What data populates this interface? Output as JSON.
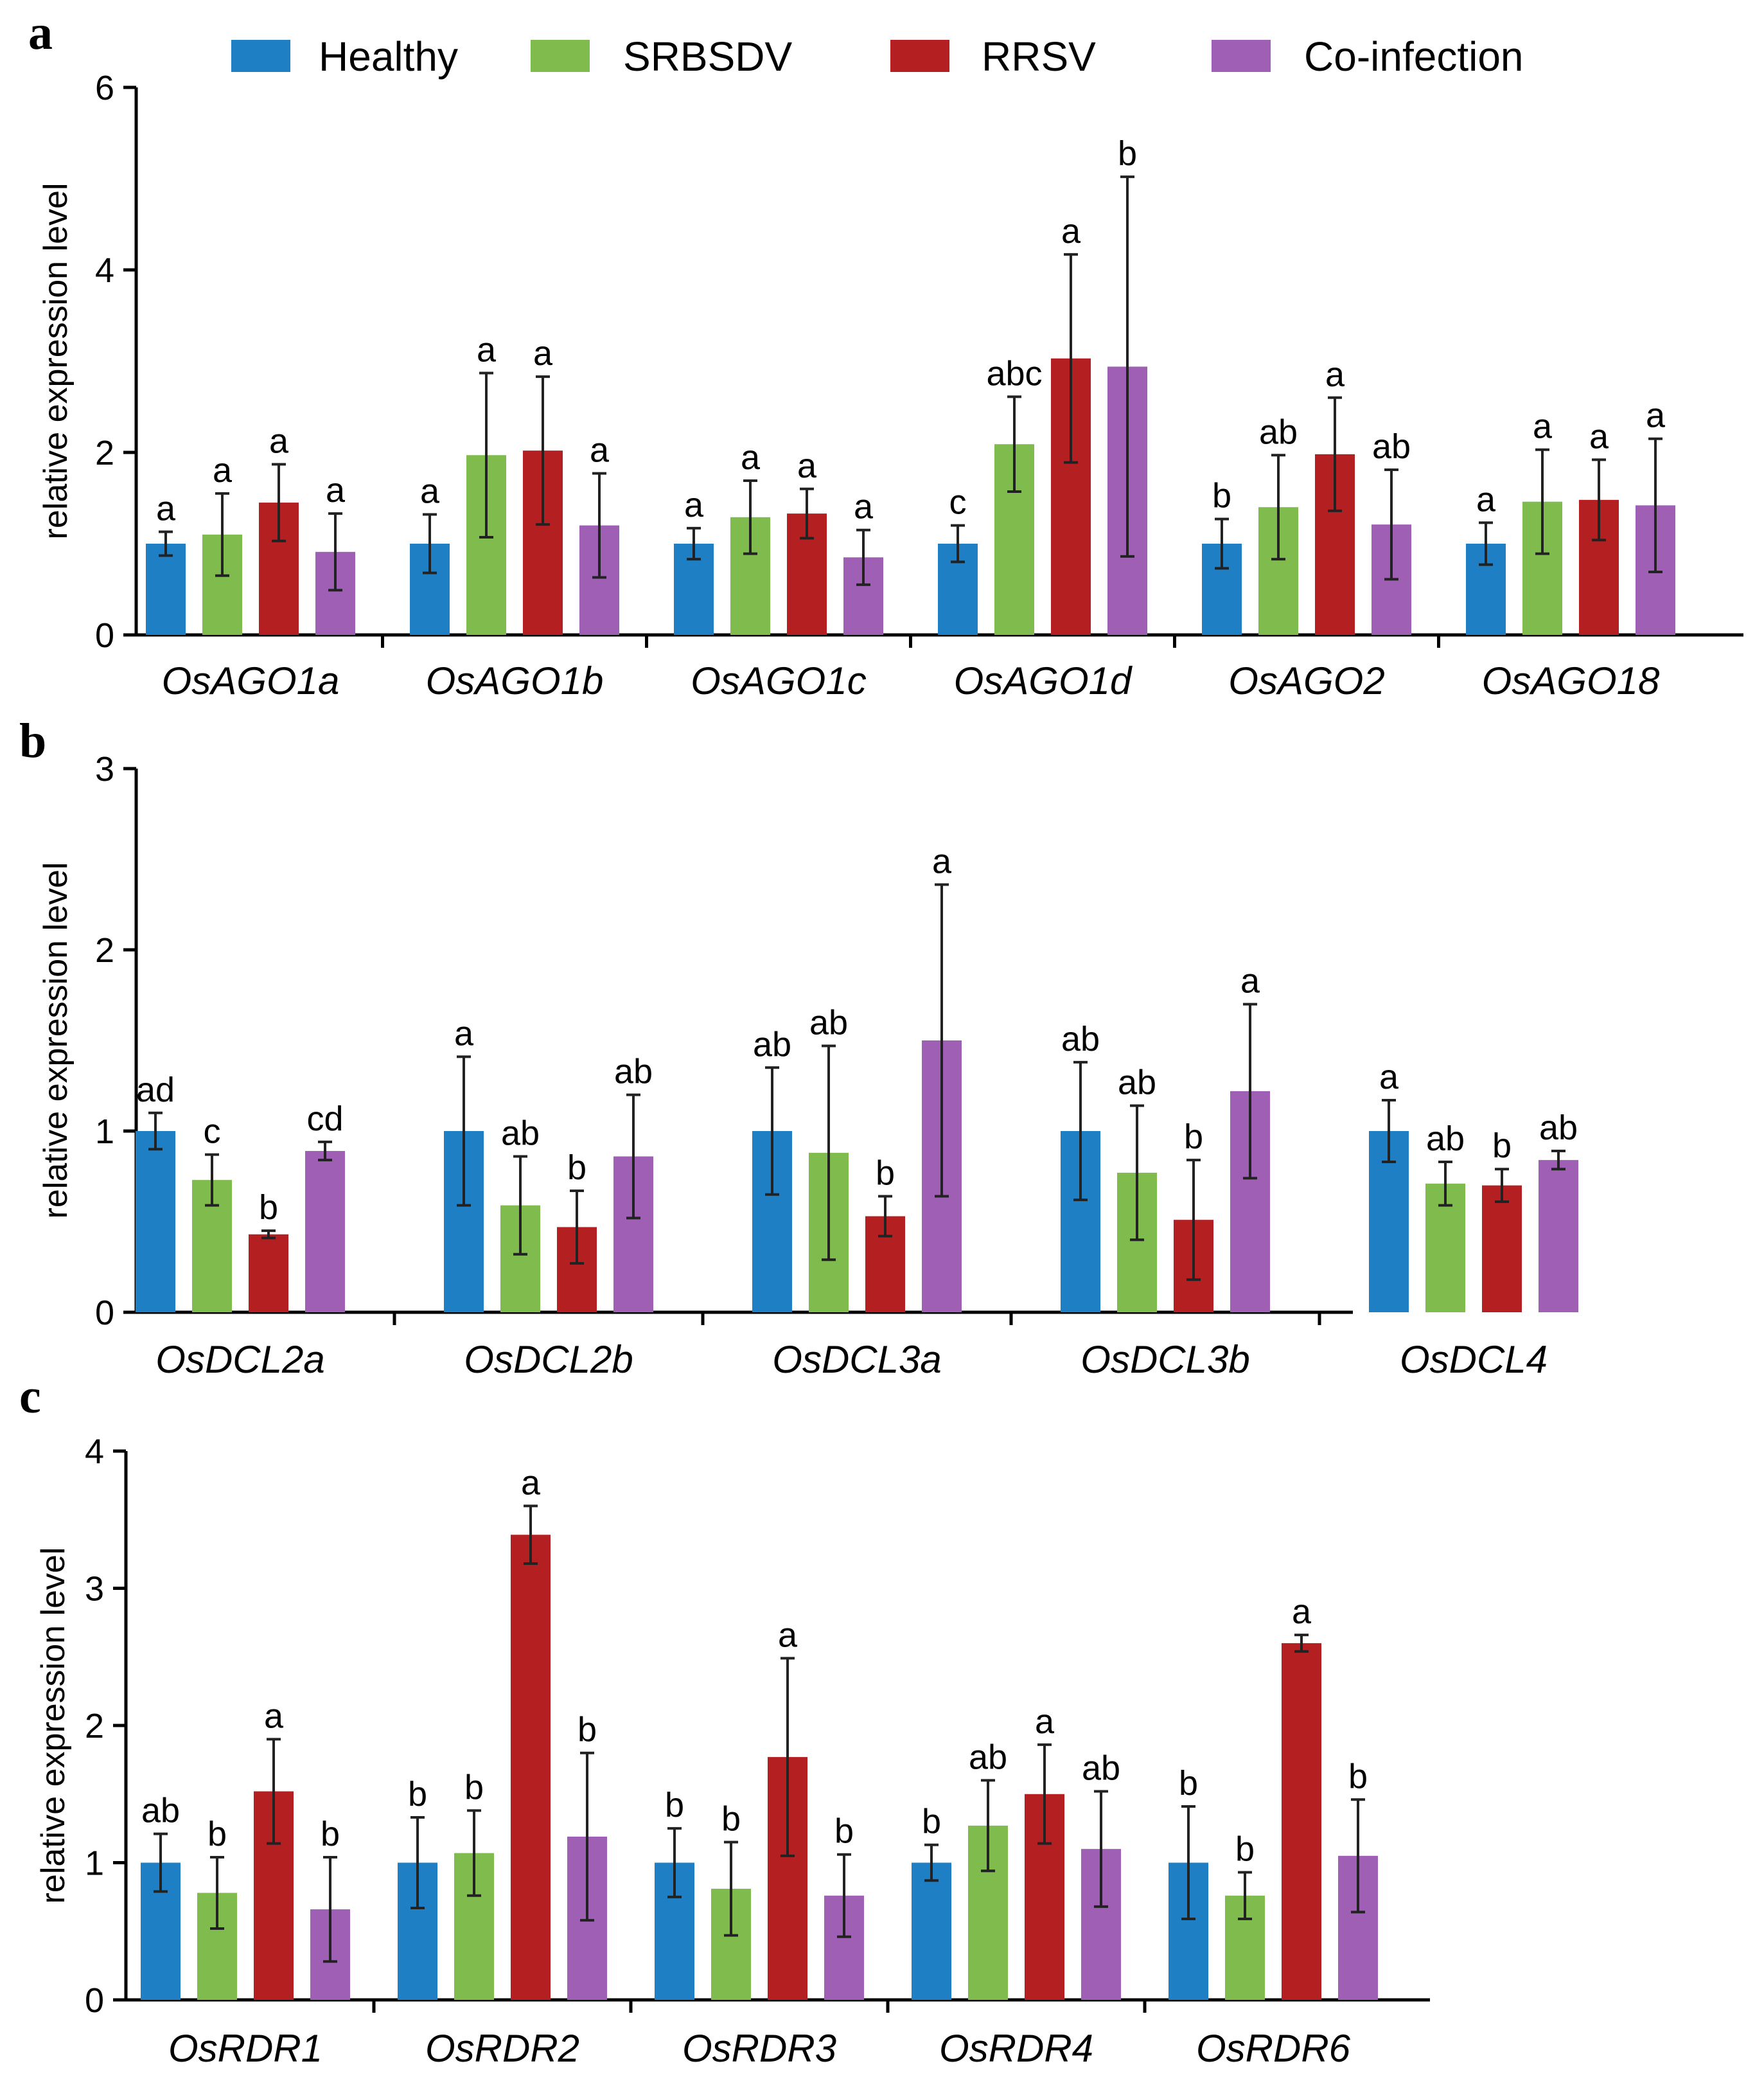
{
  "legend": [
    {
      "name": "Healthy",
      "color": "#1f7fc4"
    },
    {
      "name": "SRBSDV",
      "color": "#80bb4d"
    },
    {
      "name": "RRSV",
      "color": "#b41f22"
    },
    {
      "name": "Co-infection",
      "color": "#9e5fb5"
    }
  ],
  "chart_data": [
    {
      "type": "bar",
      "panel": "a",
      "ylabel": "relative expression level",
      "ylim": [
        0,
        6
      ],
      "yticks": [
        0,
        2,
        4,
        6
      ],
      "categories": [
        "OsAGO1a",
        "OsAGO1b",
        "OsAGO1c",
        "OsAGO1d",
        "OsAGO2",
        "OsAGO18"
      ],
      "series": [
        {
          "name": "Healthy",
          "values": [
            1.0,
            1.0,
            1.0,
            1.0,
            1.0,
            1.0
          ],
          "errors": [
            0.13,
            0.32,
            0.17,
            0.2,
            0.27,
            0.23
          ],
          "labels": [
            "a",
            "a",
            "a",
            "c",
            "b",
            "a"
          ]
        },
        {
          "name": "SRBSDV",
          "values": [
            1.1,
            1.97,
            1.29,
            2.09,
            1.4,
            1.46
          ],
          "errors": [
            0.45,
            0.9,
            0.4,
            0.52,
            0.57,
            0.57
          ],
          "labels": [
            "a",
            "a",
            "a",
            "abc",
            "ab",
            "a"
          ]
        },
        {
          "name": "RRSV",
          "values": [
            1.45,
            2.02,
            1.33,
            3.03,
            1.98,
            1.48
          ],
          "errors": [
            0.42,
            0.81,
            0.27,
            1.14,
            0.62,
            0.44
          ],
          "labels": [
            "a",
            "a",
            "a",
            "a",
            "a",
            "a"
          ]
        },
        {
          "name": "Co-infection",
          "values": [
            0.91,
            1.2,
            0.85,
            2.94,
            1.21,
            1.42
          ],
          "errors": [
            0.42,
            0.57,
            0.3,
            2.08,
            0.6,
            0.73
          ],
          "labels": [
            "a",
            "a",
            "a",
            "b",
            "ab",
            "a"
          ]
        }
      ]
    },
    {
      "type": "bar",
      "panel": "b",
      "ylabel": "relative expression level",
      "ylim": [
        0,
        3
      ],
      "yticks": [
        0,
        1,
        2,
        3
      ],
      "categories": [
        "OsDCL2a",
        "OsDCL2b",
        "OsDCL3a",
        "OsDCL3b",
        "OsDCL4"
      ],
      "series": [
        {
          "name": "Healthy",
          "values": [
            1.0,
            1.0,
            1.0,
            1.0,
            1.0
          ],
          "errors": [
            0.1,
            0.41,
            0.35,
            0.38,
            0.17
          ],
          "labels": [
            "ad",
            "a",
            "ab",
            "ab",
            "a"
          ]
        },
        {
          "name": "SRBSDV",
          "values": [
            0.73,
            0.59,
            0.88,
            0.77,
            0.71
          ],
          "errors": [
            0.14,
            0.27,
            0.59,
            0.37,
            0.12
          ],
          "labels": [
            "c",
            "ab",
            "ab",
            "ab",
            "ab"
          ]
        },
        {
          "name": "RRSV",
          "values": [
            0.43,
            0.47,
            0.53,
            0.51,
            0.7
          ],
          "errors": [
            0.02,
            0.2,
            0.11,
            0.33,
            0.09
          ],
          "labels": [
            "b",
            "b",
            "b",
            "b",
            "b"
          ]
        },
        {
          "name": "Co-infection",
          "values": [
            0.89,
            0.86,
            1.5,
            1.22,
            0.84
          ],
          "errors": [
            0.05,
            0.34,
            0.86,
            0.48,
            0.05
          ],
          "labels": [
            "cd",
            "ab",
            "a",
            "a",
            "ab"
          ]
        }
      ]
    },
    {
      "type": "bar",
      "panel": "c",
      "ylabel": "relative expression level",
      "ylim": [
        0,
        4
      ],
      "yticks": [
        0,
        1,
        2,
        3,
        4
      ],
      "categories": [
        "OsRDR1",
        "OsRDR2",
        "OsRDR3",
        "OsRDR4",
        "OsRDR6"
      ],
      "series": [
        {
          "name": "Healthy",
          "values": [
            1.0,
            1.0,
            1.0,
            1.0,
            1.0
          ],
          "errors": [
            0.21,
            0.33,
            0.25,
            0.13,
            0.41
          ],
          "labels": [
            "ab",
            "b",
            "b",
            "b",
            "b"
          ]
        },
        {
          "name": "SRBSDV",
          "values": [
            0.78,
            1.07,
            0.81,
            1.27,
            0.76
          ],
          "errors": [
            0.26,
            0.31,
            0.34,
            0.33,
            0.17
          ],
          "labels": [
            "b",
            "b",
            "b",
            "ab",
            "b"
          ]
        },
        {
          "name": "RRSV",
          "values": [
            1.52,
            3.39,
            1.77,
            1.5,
            2.6
          ],
          "errors": [
            0.38,
            0.21,
            0.72,
            0.36,
            0.06
          ],
          "labels": [
            "a",
            "a",
            "a",
            "a",
            "a"
          ]
        },
        {
          "name": "Co-infection",
          "values": [
            0.66,
            1.19,
            0.76,
            1.1,
            1.05
          ],
          "errors": [
            0.38,
            0.61,
            0.3,
            0.42,
            0.41
          ],
          "labels": [
            "b",
            "b",
            "b",
            "ab",
            "b"
          ]
        }
      ]
    }
  ]
}
